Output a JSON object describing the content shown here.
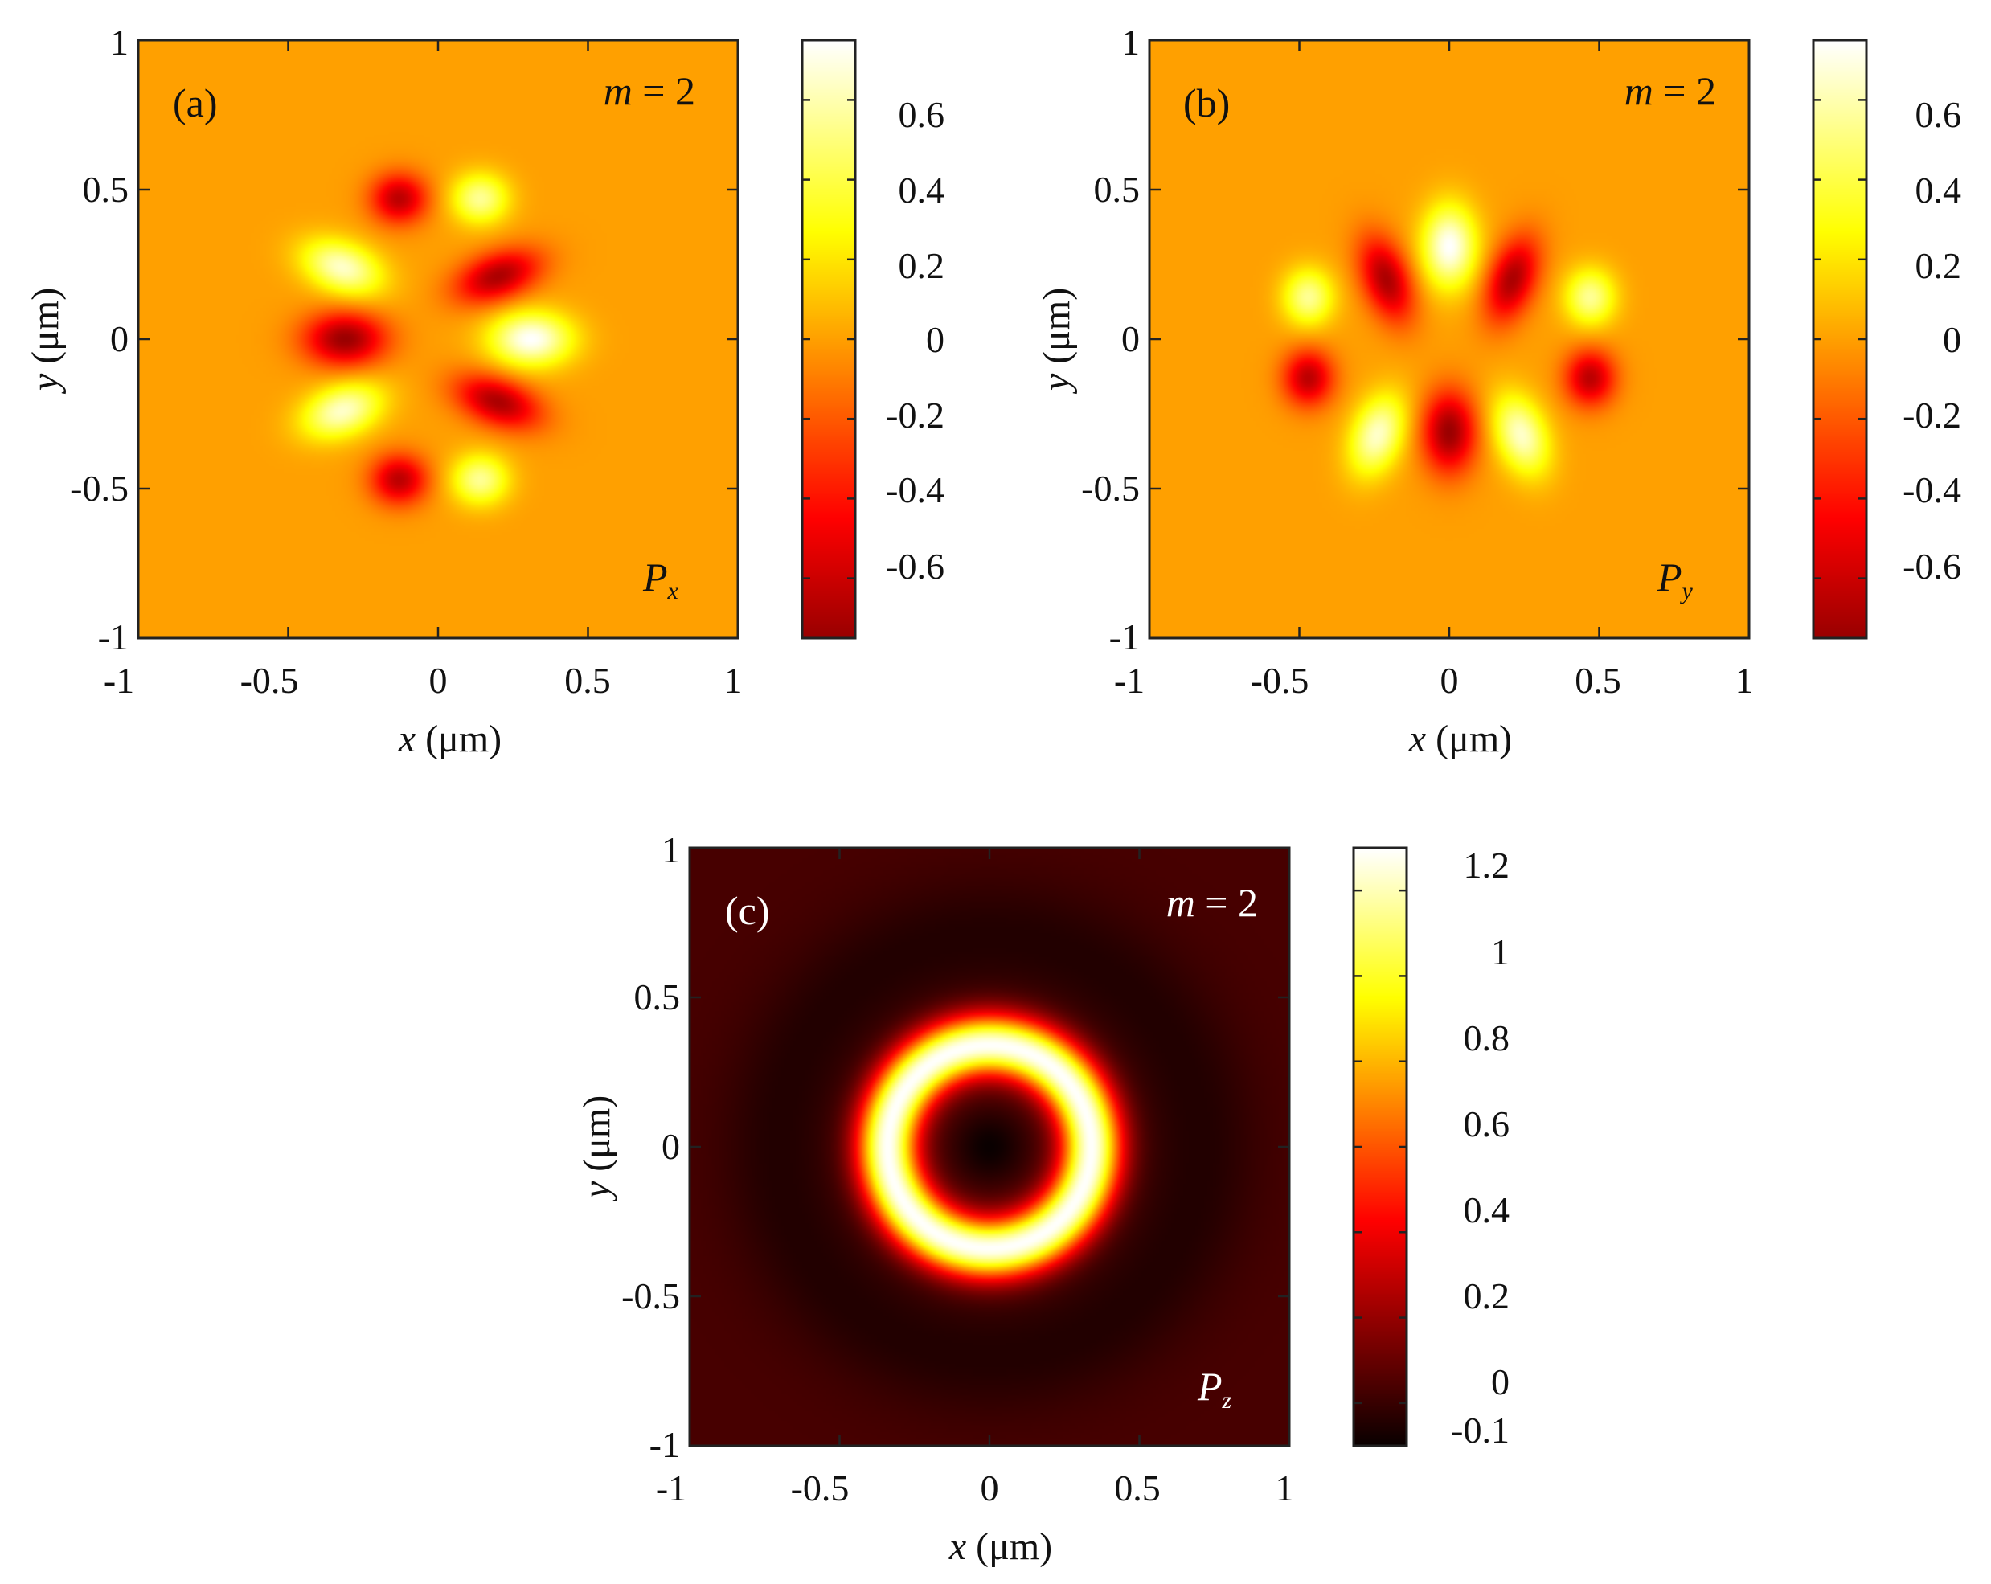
{
  "chart_data": [
    {
      "type": "heatmap",
      "panel_label": "(a)",
      "annotation": "m = 2",
      "annotation_parts": {
        "symbol": "m",
        "rest": " = 2"
      },
      "quantity_label": {
        "symbol": "P",
        "subscript": "x"
      },
      "xlabel": {
        "var": "x",
        "unit": " (μm)"
      },
      "ylabel": {
        "var": "y",
        "unit": " (μm)"
      },
      "xlim": [
        -1,
        1
      ],
      "ylim": [
        -1,
        1
      ],
      "xticks": [
        "-1",
        "-0.5",
        "0",
        "0.5",
        "1"
      ],
      "yticks": [
        "-1",
        "-0.5",
        "0",
        "0.5",
        "1"
      ],
      "colormap": "hot",
      "clim": [
        -0.75,
        0.75
      ],
      "colorbar_ticks": [
        "0.6",
        "0.4",
        "0.2",
        "0",
        "-0.2",
        "-0.4",
        "-0.6"
      ],
      "colorbar_tick_values": [
        0.6,
        0.4,
        0.2,
        0,
        -0.2,
        -0.4,
        -0.6
      ],
      "background_value": 0,
      "features": [
        {
          "x": -0.31,
          "y": 0.0,
          "value": -0.75,
          "rx": 0.13,
          "ry": 0.085
        },
        {
          "x": 0.31,
          "y": 0.0,
          "value": 0.75,
          "rx": 0.13,
          "ry": 0.085
        },
        {
          "x": -0.32,
          "y": 0.24,
          "value": 0.65,
          "rx": 0.13,
          "ry": 0.08,
          "angle": -20
        },
        {
          "x": -0.32,
          "y": -0.24,
          "value": 0.65,
          "rx": 0.13,
          "ry": 0.08,
          "angle": 20
        },
        {
          "x": 0.2,
          "y": 0.21,
          "value": -0.7,
          "rx": 0.14,
          "ry": 0.075,
          "angle": 20
        },
        {
          "x": 0.2,
          "y": -0.21,
          "value": -0.7,
          "rx": 0.14,
          "ry": 0.075,
          "angle": -20
        },
        {
          "x": -0.13,
          "y": 0.47,
          "value": -0.65,
          "rx": 0.09,
          "ry": 0.08
        },
        {
          "x": -0.13,
          "y": -0.47,
          "value": -0.65,
          "rx": 0.09,
          "ry": 0.08
        },
        {
          "x": 0.14,
          "y": 0.47,
          "value": 0.55,
          "rx": 0.09,
          "ry": 0.08
        },
        {
          "x": 0.14,
          "y": -0.47,
          "value": 0.55,
          "rx": 0.09,
          "ry": 0.08
        }
      ]
    },
    {
      "type": "heatmap",
      "panel_label": "(b)",
      "annotation": "m = 2",
      "annotation_parts": {
        "symbol": "m",
        "rest": " = 2"
      },
      "quantity_label": {
        "symbol": "P",
        "subscript": "y"
      },
      "xlabel": {
        "var": "x",
        "unit": " (μm)"
      },
      "ylabel": {
        "var": "y",
        "unit": " (μm)"
      },
      "xlim": [
        -1,
        1
      ],
      "ylim": [
        -1,
        1
      ],
      "xticks": [
        "-1",
        "-0.5",
        "0",
        "0.5",
        "1"
      ],
      "yticks": [
        "-1",
        "-0.5",
        "0",
        "0.5",
        "1"
      ],
      "colormap": "hot",
      "clim": [
        -0.75,
        0.75
      ],
      "colorbar_ticks": [
        "0.6",
        "0.4",
        "0.2",
        "0",
        "-0.2",
        "-0.4",
        "-0.6"
      ],
      "colorbar_tick_values": [
        0.6,
        0.4,
        0.2,
        0,
        -0.2,
        -0.4,
        -0.6
      ],
      "background_value": 0,
      "features": [
        {
          "x": 0.0,
          "y": 0.31,
          "value": 0.75,
          "rx": 0.085,
          "ry": 0.13
        },
        {
          "x": 0.0,
          "y": -0.31,
          "value": -0.75,
          "rx": 0.085,
          "ry": 0.13
        },
        {
          "x": -0.21,
          "y": 0.2,
          "value": -0.7,
          "rx": 0.075,
          "ry": 0.14,
          "angle": 20
        },
        {
          "x": 0.21,
          "y": 0.2,
          "value": -0.7,
          "rx": 0.075,
          "ry": 0.14,
          "angle": -20
        },
        {
          "x": -0.24,
          "y": -0.32,
          "value": 0.65,
          "rx": 0.08,
          "ry": 0.13,
          "angle": -20
        },
        {
          "x": 0.24,
          "y": -0.32,
          "value": 0.65,
          "rx": 0.08,
          "ry": 0.13,
          "angle": 20
        },
        {
          "x": -0.47,
          "y": 0.14,
          "value": 0.55,
          "rx": 0.08,
          "ry": 0.09
        },
        {
          "x": 0.47,
          "y": 0.14,
          "value": 0.55,
          "rx": 0.08,
          "ry": 0.09
        },
        {
          "x": -0.47,
          "y": -0.13,
          "value": -0.65,
          "rx": 0.08,
          "ry": 0.09
        },
        {
          "x": 0.47,
          "y": -0.13,
          "value": -0.65,
          "rx": 0.08,
          "ry": 0.09
        }
      ]
    },
    {
      "type": "heatmap",
      "panel_label": "(c)",
      "annotation": "m = 2",
      "annotation_parts": {
        "symbol": "m",
        "rest": " = 2"
      },
      "quantity_label": {
        "symbol": "P",
        "subscript": "z"
      },
      "xlabel": {
        "var": "x",
        "unit": " (μm)"
      },
      "ylabel": {
        "var": "y",
        "unit": " (μm)"
      },
      "xlim": [
        -1,
        1
      ],
      "ylim": [
        -1,
        1
      ],
      "xticks": [
        "-1",
        "-0.5",
        "0",
        "0.5",
        "1"
      ],
      "yticks": [
        "-1",
        "-0.5",
        "0",
        "0.5",
        "1"
      ],
      "colormap": "hot",
      "clim": [
        -0.1,
        1.3
      ],
      "colorbar_ticks": [
        "1.2",
        "1",
        "0.8",
        "0.6",
        "0.4",
        "0.2",
        "0",
        "-0.1"
      ],
      "colorbar_tick_values": [
        1.2,
        1.0,
        0.8,
        0.6,
        0.4,
        0.2,
        0,
        -0.1
      ],
      "background_value": 0.03,
      "ring": {
        "radius": 0.34,
        "width": 0.1,
        "peak_value": 1.3,
        "center_value": -0.1,
        "outer_trough_radius": 0.7,
        "outer_trough_value": -0.05
      }
    }
  ],
  "colors": {
    "background": "#ffffff",
    "axis": "#222222",
    "dark_text": "#111111",
    "light_text": "#ffffff"
  }
}
